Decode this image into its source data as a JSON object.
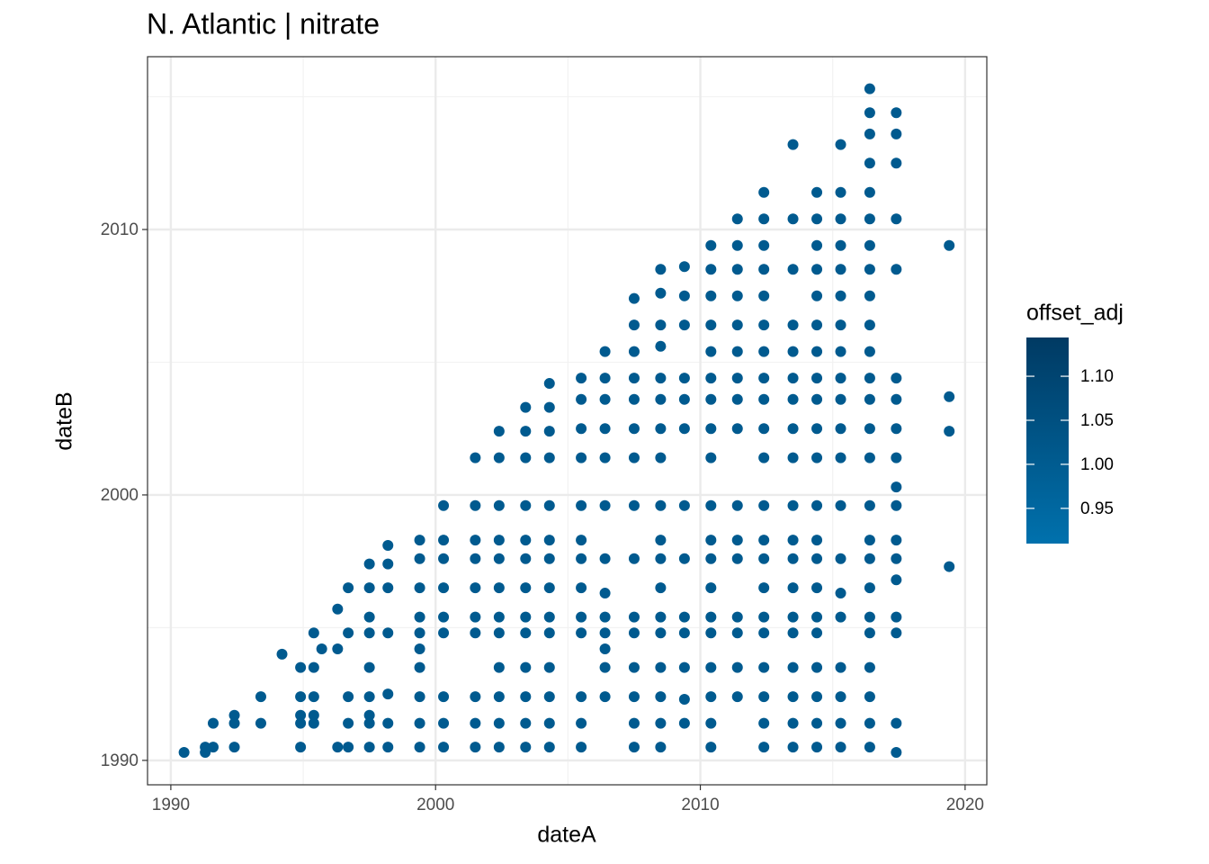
{
  "chart_data": {
    "type": "scatter",
    "title": "N. Atlantic | nitrate",
    "x_label": "dateA",
    "y_label": "dateB",
    "color": "#005a8f",
    "xlim": [
      1989.12,
      2020.82
    ],
    "ylim": [
      1989.08,
      2016.51
    ],
    "xticks": [
      1990,
      2000,
      2010,
      2020
    ],
    "yticks": [
      1990,
      2000,
      2010
    ],
    "x_minor_grid": [
      1995,
      2005,
      2015
    ],
    "y_minor_grid": [
      1995,
      2005,
      2015
    ],
    "grid": true,
    "colorbar": {
      "title": "offset_adj",
      "lim": [
        0.91,
        1.144
      ],
      "colors": [
        "#0071ad",
        "#003a63"
      ],
      "ticks": [
        {
          "value": 0.95,
          "label": "0.95"
        },
        {
          "value": 1,
          "label": "1.00"
        },
        {
          "value": 1.05,
          "label": "1.05"
        },
        {
          "value": 1.1,
          "label": "1.10"
        }
      ]
    },
    "x": [
      1990.5,
      1991.3,
      1991.3,
      1991.6,
      1991.6,
      1992.4,
      1992.4,
      1992.4,
      1993.4,
      1993.4,
      1994.2,
      1994.9,
      1994.9,
      1994.9,
      1994.9,
      1994.9,
      1995.4,
      1995.4,
      1995.4,
      1995.4,
      1995.4,
      1995.7,
      1996.3,
      1996.3,
      1996.3,
      1996.7,
      1996.7,
      1996.7,
      1996.7,
      1996.7,
      1997.5,
      1997.5,
      1997.5,
      1997.5,
      1997.5,
      1997.5,
      1997.5,
      1997.5,
      1997.5,
      1998.2,
      1998.2,
      1998.2,
      1998.2,
      1998.2,
      1998.2,
      1998.2,
      1999.4,
      1999.4,
      1999.4,
      1999.4,
      1999.4,
      1999.4,
      1999.4,
      1999.4,
      1999.4,
      1999.4,
      2000.3,
      2000.3,
      2000.3,
      2000.3,
      2000.3,
      2000.3,
      2000.3,
      2000.3,
      2000.3,
      2001.5,
      2001.5,
      2001.5,
      2001.5,
      2001.5,
      2001.5,
      2001.5,
      2001.5,
      2001.5,
      2001.5,
      2002.4,
      2002.4,
      2002.4,
      2002.4,
      2002.4,
      2002.4,
      2002.4,
      2002.4,
      2002.4,
      2002.4,
      2002.4,
      2002.4,
      2003.4,
      2003.4,
      2003.4,
      2003.4,
      2003.4,
      2003.4,
      2003.4,
      2003.4,
      2003.4,
      2003.4,
      2003.4,
      2003.4,
      2003.4,
      2004.3,
      2004.3,
      2004.3,
      2004.3,
      2004.3,
      2004.3,
      2004.3,
      2004.3,
      2004.3,
      2004.3,
      2004.3,
      2004.3,
      2004.3,
      2004.3,
      2005.5,
      2005.5,
      2005.5,
      2005.5,
      2005.5,
      2005.5,
      2005.5,
      2005.5,
      2005.5,
      2005.5,
      2005.5,
      2005.5,
      2005.5,
      2006.4,
      2006.4,
      2006.4,
      2006.4,
      2006.4,
      2006.4,
      2006.4,
      2006.4,
      2006.4,
      2006.4,
      2006.4,
      2006.4,
      2006.4,
      2007.5,
      2007.5,
      2007.5,
      2007.5,
      2007.5,
      2007.5,
      2007.5,
      2007.5,
      2007.5,
      2007.5,
      2007.5,
      2007.5,
      2007.5,
      2007.5,
      2007.5,
      2008.5,
      2008.5,
      2008.5,
      2008.5,
      2008.5,
      2008.5,
      2008.5,
      2008.5,
      2008.5,
      2008.5,
      2008.5,
      2008.5,
      2008.5,
      2008.5,
      2008.5,
      2008.5,
      2008.5,
      2008.5,
      2009.4,
      2009.4,
      2009.4,
      2009.4,
      2009.4,
      2009.4,
      2009.4,
      2009.4,
      2009.4,
      2009.4,
      2009.4,
      2009.4,
      2009.4,
      2010.4,
      2010.4,
      2010.4,
      2010.4,
      2010.4,
      2010.4,
      2010.4,
      2010.4,
      2010.4,
      2010.4,
      2010.4,
      2010.4,
      2010.4,
      2010.4,
      2010.4,
      2010.4,
      2010.4,
      2010.4,
      2010.4,
      2011.4,
      2011.4,
      2011.4,
      2011.4,
      2011.4,
      2011.4,
      2011.4,
      2011.4,
      2011.4,
      2011.4,
      2011.4,
      2011.4,
      2011.4,
      2011.4,
      2011.4,
      2011.4,
      2012.4,
      2012.4,
      2012.4,
      2012.4,
      2012.4,
      2012.4,
      2012.4,
      2012.4,
      2012.4,
      2012.4,
      2012.4,
      2012.4,
      2012.4,
      2012.4,
      2012.4,
      2012.4,
      2012.4,
      2012.4,
      2012.4,
      2012.4,
      2012.4,
      2013.5,
      2013.5,
      2013.5,
      2013.5,
      2013.5,
      2013.5,
      2013.5,
      2013.5,
      2013.5,
      2013.5,
      2013.5,
      2013.5,
      2013.5,
      2013.5,
      2013.5,
      2013.5,
      2013.5,
      2013.5,
      2013.5,
      2014.4,
      2014.4,
      2014.4,
      2014.4,
      2014.4,
      2014.4,
      2014.4,
      2014.4,
      2014.4,
      2014.4,
      2014.4,
      2014.4,
      2014.4,
      2014.4,
      2014.4,
      2014.4,
      2014.4,
      2014.4,
      2014.4,
      2014.4,
      2014.4,
      2015.3,
      2015.3,
      2015.3,
      2015.3,
      2015.3,
      2015.3,
      2015.3,
      2015.3,
      2015.3,
      2015.3,
      2015.3,
      2015.3,
      2015.3,
      2015.3,
      2015.3,
      2015.3,
      2015.3,
      2015.3,
      2015.3,
      2015.3,
      2016.4,
      2016.4,
      2016.4,
      2016.4,
      2016.4,
      2016.4,
      2016.4,
      2016.4,
      2016.4,
      2016.4,
      2016.4,
      2016.4,
      2016.4,
      2016.4,
      2016.4,
      2016.4,
      2016.4,
      2016.4,
      2016.4,
      2016.4,
      2016.4,
      2016.4,
      2016.4,
      2016.4,
      2016.4,
      2017.4,
      2017.4,
      2017.4,
      2017.4,
      2017.4,
      2017.4,
      2017.4,
      2017.4,
      2017.4,
      2017.4,
      2017.4,
      2017.4,
      2017.4,
      2017.4,
      2017.4,
      2017.4,
      2017.4,
      2017.4,
      2019.4,
      2019.4,
      2019.4,
      2019.4
    ],
    "values": [
      1990.3,
      1990.5,
      1990.3,
      1991.4,
      1990.5,
      1991.7,
      1991.4,
      1990.5,
      1992.4,
      1991.4,
      1994.0,
      1993.5,
      1992.4,
      1991.7,
      1991.4,
      1990.5,
      1994.8,
      1993.5,
      1992.4,
      1991.7,
      1991.4,
      1994.2,
      1995.7,
      1994.2,
      1990.5,
      1996.5,
      1994.8,
      1992.4,
      1991.4,
      1990.5,
      1997.4,
      1996.5,
      1995.4,
      1994.8,
      1993.5,
      1992.4,
      1991.7,
      1991.4,
      1990.5,
      1998.1,
      1997.4,
      1996.5,
      1994.8,
      1992.5,
      1991.4,
      1990.5,
      1998.3,
      1997.6,
      1996.5,
      1995.4,
      1994.8,
      1994.2,
      1993.5,
      1992.4,
      1991.4,
      1990.5,
      1999.6,
      1998.3,
      1997.6,
      1996.5,
      1995.4,
      1994.8,
      1992.4,
      1991.4,
      1990.5,
      2001.4,
      1999.6,
      1998.3,
      1997.6,
      1996.5,
      1995.4,
      1994.8,
      1992.4,
      1991.4,
      1990.5,
      2002.4,
      2001.4,
      1999.6,
      1998.3,
      1997.6,
      1996.5,
      1995.4,
      1994.8,
      1993.5,
      1992.4,
      1991.4,
      1990.5,
      2003.3,
      2002.4,
      2001.4,
      1999.6,
      1998.3,
      1997.6,
      1996.5,
      1995.4,
      1994.8,
      1993.5,
      1992.4,
      1991.4,
      1990.5,
      2004.2,
      2003.3,
      2002.4,
      2001.4,
      1999.6,
      1998.3,
      1997.6,
      1996.5,
      1995.4,
      1994.8,
      1993.5,
      1992.4,
      1991.4,
      1990.5,
      2004.4,
      2003.6,
      2002.5,
      2001.4,
      1999.6,
      1998.3,
      1997.6,
      1996.5,
      1995.4,
      1994.8,
      1992.4,
      1991.4,
      1990.5,
      2005.4,
      2004.4,
      2003.6,
      2002.5,
      2001.4,
      1999.6,
      1997.6,
      1996.3,
      1995.4,
      1994.8,
      1994.2,
      1993.5,
      1992.4,
      2007.4,
      2006.4,
      2005.4,
      2004.4,
      2003.6,
      2002.5,
      2001.4,
      1999.6,
      1997.6,
      1995.4,
      1994.8,
      1993.5,
      1992.4,
      1991.4,
      1990.5,
      2008.5,
      2007.6,
      2006.4,
      2005.6,
      2004.4,
      2003.6,
      2002.5,
      2001.4,
      1999.6,
      1998.3,
      1997.6,
      1996.5,
      1995.4,
      1994.8,
      1993.5,
      1992.4,
      1991.4,
      1990.5,
      2008.6,
      2007.5,
      2006.4,
      2004.4,
      2003.6,
      2002.5,
      1999.6,
      1997.6,
      1995.4,
      1994.8,
      1993.5,
      1992.3,
      1991.4,
      2009.4,
      2008.5,
      2007.5,
      2006.4,
      2005.4,
      2004.4,
      2003.6,
      2002.5,
      2001.4,
      1999.6,
      1998.3,
      1997.6,
      1996.5,
      1995.4,
      1994.8,
      1993.5,
      1992.4,
      1991.4,
      1990.5,
      2010.4,
      2009.4,
      2008.5,
      2007.5,
      2006.4,
      2005.4,
      2004.4,
      2003.6,
      2002.5,
      1999.6,
      1998.3,
      1997.6,
      1995.4,
      1994.8,
      1993.5,
      1992.4,
      2011.4,
      2010.4,
      2009.4,
      2008.5,
      2007.5,
      2006.4,
      2005.4,
      2004.4,
      2003.6,
      2002.5,
      2001.4,
      1999.6,
      1998.3,
      1997.6,
      1996.5,
      1995.4,
      1994.8,
      1993.5,
      1992.4,
      1991.4,
      1990.5,
      2013.2,
      2010.4,
      2008.5,
      2006.4,
      2005.4,
      2004.4,
      2003.6,
      2002.5,
      2001.4,
      1999.6,
      1998.3,
      1997.6,
      1996.5,
      1995.4,
      1994.8,
      1993.5,
      1992.4,
      1991.4,
      1990.5,
      2011.4,
      2010.4,
      2009.4,
      2008.5,
      2007.5,
      2006.4,
      2005.4,
      2004.4,
      2003.6,
      2002.5,
      2001.4,
      1999.6,
      1998.3,
      1997.6,
      1996.5,
      1995.4,
      1994.8,
      1993.5,
      1992.4,
      1991.4,
      1990.5,
      2013.2,
      2011.4,
      2010.4,
      2009.4,
      2008.5,
      2007.5,
      2006.4,
      2005.4,
      2004.4,
      2003.6,
      2002.5,
      2001.4,
      1999.6,
      1997.6,
      1996.3,
      1995.4,
      1993.5,
      1992.4,
      1991.4,
      1990.5,
      2015.3,
      2014.4,
      2013.6,
      2012.5,
      2011.4,
      2010.4,
      2009.4,
      2008.5,
      2007.5,
      2006.4,
      2005.4,
      2004.4,
      2003.6,
      2002.5,
      2001.4,
      1999.6,
      1998.3,
      1997.6,
      1996.5,
      1995.4,
      1994.8,
      1993.5,
      1992.4,
      1991.4,
      1990.5,
      2014.4,
      2013.6,
      2012.5,
      2010.4,
      2008.5,
      2004.4,
      2003.6,
      2002.5,
      2001.4,
      2000.3,
      1999.6,
      1998.3,
      1997.6,
      1996.8,
      1995.4,
      1994.8,
      1991.4,
      1990.3,
      2009.4,
      2003.7,
      2002.4,
      1997.3
    ]
  }
}
